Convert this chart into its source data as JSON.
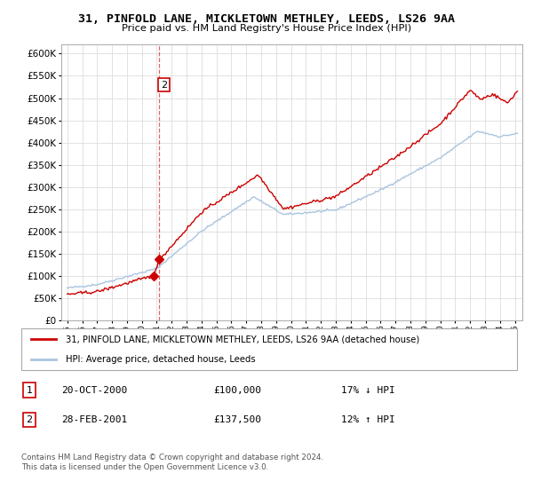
{
  "title": "31, PINFOLD LANE, MICKLETOWN METHLEY, LEEDS, LS26 9AA",
  "subtitle": "Price paid vs. HM Land Registry's House Price Index (HPI)",
  "legend_line1": "31, PINFOLD LANE, MICKLETOWN METHLEY, LEEDS, LS26 9AA (detached house)",
  "legend_line2": "HPI: Average price, detached house, Leeds",
  "footnote1": "Contains HM Land Registry data © Crown copyright and database right 2024.",
  "footnote2": "This data is licensed under the Open Government Licence v3.0.",
  "transaction1_num": "1",
  "transaction1_date": "20-OCT-2000",
  "transaction1_price": "£100,000",
  "transaction1_hpi": "17% ↓ HPI",
  "transaction2_num": "2",
  "transaction2_date": "28-FEB-2001",
  "transaction2_price": "£137,500",
  "transaction2_hpi": "12% ↑ HPI",
  "hpi_color": "#aac4e0",
  "price_color": "#cc0000",
  "dashed_line_color": "#cc0000",
  "ylim_min": 0,
  "ylim_max": 620000,
  "yticks": [
    0,
    50000,
    100000,
    150000,
    200000,
    250000,
    300000,
    350000,
    400000,
    450000,
    500000,
    550000,
    600000
  ],
  "year_start": 1995,
  "year_end": 2025
}
